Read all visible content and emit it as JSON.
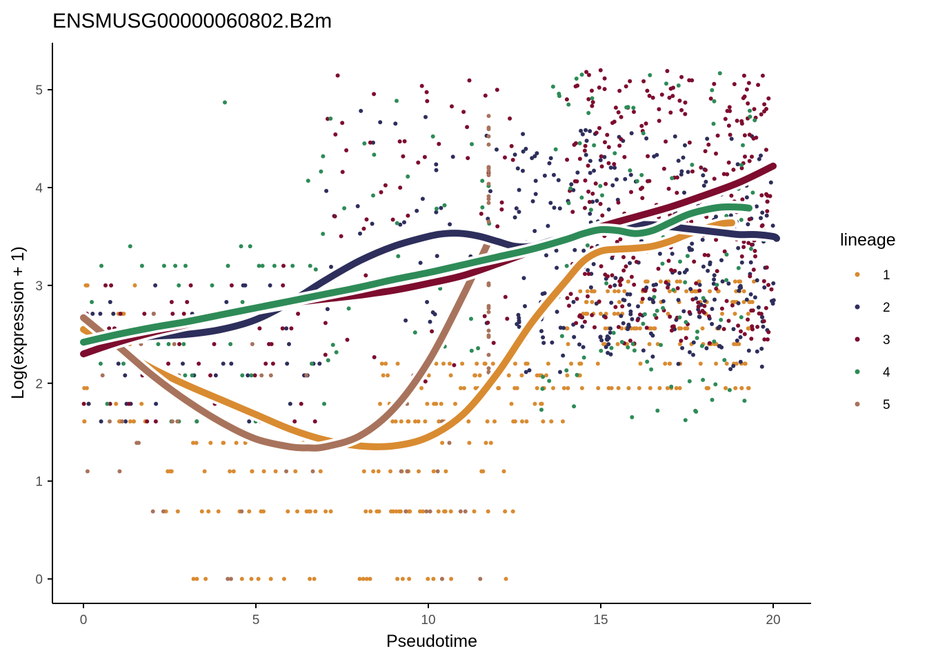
{
  "chart_data": {
    "type": "scatter",
    "title": "ENSMUSG00000060802.B2m",
    "xlabel": "Pseudotime",
    "ylabel": "Log(expression + 1)",
    "xlim": [
      -0.9,
      21.1
    ],
    "ylim": [
      -0.25,
      5.48
    ],
    "x_ticks": [
      0,
      5,
      10,
      15,
      20
    ],
    "y_ticks": [
      0,
      1,
      2,
      3,
      4,
      5
    ],
    "grid": false,
    "legend": {
      "title": "lineage",
      "position": "right",
      "entries": [
        "1",
        "2",
        "3",
        "4",
        "5"
      ]
    },
    "series": [
      {
        "name": "1",
        "color": "#D98B31",
        "point_clusters": [
          {
            "x": [
              2.3,
              12.5
            ],
            "levels": [
              0.0,
              0.69,
              1.1,
              1.39
            ],
            "n": 120
          },
          {
            "x": [
              8.5,
              14.5
            ],
            "levels": [
              1.61,
              1.79,
              1.95,
              2.08,
              2.2
            ],
            "n": 90
          },
          {
            "x": [
              14.0,
              19.5
            ],
            "levels": [
              1.95,
              2.2,
              2.4,
              2.56,
              2.71,
              2.83,
              2.94,
              3.04
            ],
            "n": 160
          },
          {
            "x": [
              0.0,
              2.0
            ],
            "levels": [
              1.61,
              1.79,
              1.95,
              2.08,
              2.4,
              2.71,
              3.0
            ],
            "n": 25
          }
        ],
        "smooth": {
          "x": [
            0.0,
            1.0,
            2.0,
            3.0,
            4.0,
            5.0,
            6.0,
            7.0,
            8.0,
            9.0,
            10.0,
            11.0,
            12.0,
            13.0,
            14.0,
            14.5,
            15.0,
            15.5,
            16.0,
            16.5,
            17.0,
            17.5,
            18.0,
            18.5,
            18.8
          ],
          "y": [
            2.55,
            2.35,
            2.15,
            1.98,
            1.83,
            1.68,
            1.53,
            1.42,
            1.36,
            1.36,
            1.45,
            1.68,
            2.1,
            2.62,
            3.05,
            3.25,
            3.35,
            3.37,
            3.38,
            3.4,
            3.45,
            3.52,
            3.58,
            3.63,
            3.64
          ]
        }
      },
      {
        "name": "2",
        "color": "#2E2E5C",
        "point_clusters": [
          {
            "x": [
              0.0,
              7.0
            ],
            "levels": [
              1.61,
              1.79,
              2.08,
              2.2,
              2.4,
              2.56,
              2.71,
              2.83,
              3.0
            ],
            "n": 45
          },
          {
            "x": [
              7.0,
              12.0
            ],
            "levels": [
              2.6,
              3.0,
              3.4,
              3.8,
              4.2,
              4.6
            ],
            "n": 40,
            "jitter": true
          },
          {
            "x": [
              12.5,
              20.1
            ],
            "levels": [
              2.3,
              2.56,
              2.71,
              2.83,
              3.0,
              3.2,
              3.4,
              3.6,
              3.8,
              4.0,
              4.2,
              4.4
            ],
            "n": 320,
            "jitter": true
          }
        ],
        "smooth": {
          "x": [
            0.0,
            1.0,
            2.0,
            3.0,
            4.0,
            5.0,
            6.0,
            7.0,
            8.0,
            9.0,
            10.0,
            10.5,
            11.0,
            11.5,
            12.0,
            12.5,
            13.0,
            13.5,
            14.0,
            14.5,
            15.0,
            15.5,
            16.0,
            16.5,
            17.0,
            17.5,
            18.0,
            18.5,
            19.0,
            19.5,
            20.0,
            20.1
          ],
          "y": [
            2.43,
            2.45,
            2.48,
            2.5,
            2.55,
            2.65,
            2.83,
            3.05,
            3.25,
            3.4,
            3.5,
            3.53,
            3.53,
            3.5,
            3.45,
            3.4,
            3.4,
            3.45,
            3.5,
            3.55,
            3.58,
            3.6,
            3.62,
            3.62,
            3.6,
            3.58,
            3.56,
            3.54,
            3.52,
            3.52,
            3.5,
            3.48
          ]
        }
      },
      {
        "name": "3",
        "color": "#7D0C2E",
        "point_clusters": [
          {
            "x": [
              0.0,
              7.0
            ],
            "levels": [
              1.61,
              1.79,
              2.08,
              2.2,
              2.4,
              2.56,
              2.71,
              2.83,
              3.0,
              3.2
            ],
            "n": 45
          },
          {
            "x": [
              7.0,
              12.5
            ],
            "levels": [
              2.2,
              2.6,
              3.0,
              3.4,
              3.8,
              4.2,
              4.6,
              5.0
            ],
            "n": 60,
            "jitter": true
          },
          {
            "x": [
              14.0,
              20.0
            ],
            "levels": [
              2.6,
              3.0,
              3.4,
              3.8,
              4.2,
              4.6,
              5.0
            ],
            "n": 320,
            "jitter": true
          }
        ],
        "smooth": {
          "x": [
            0.0,
            1.0,
            2.0,
            3.0,
            4.0,
            5.0,
            6.0,
            7.0,
            8.0,
            9.0,
            10.0,
            11.0,
            12.0,
            13.0,
            14.0,
            15.0,
            16.0,
            17.0,
            18.0,
            19.0,
            20.0
          ],
          "y": [
            2.3,
            2.42,
            2.52,
            2.6,
            2.68,
            2.76,
            2.82,
            2.86,
            2.9,
            2.95,
            3.02,
            3.1,
            3.22,
            3.35,
            3.48,
            3.6,
            3.7,
            3.8,
            3.92,
            4.05,
            4.22
          ]
        }
      },
      {
        "name": "4",
        "color": "#2E8B57",
        "point_clusters": [
          {
            "x": [
              0.0,
              7.0
            ],
            "levels": [
              1.61,
              1.79,
              2.08,
              2.2,
              2.4,
              2.56,
              2.83,
              3.0,
              3.2,
              3.4
            ],
            "n": 40
          },
          {
            "x": [
              6.5,
              12.0
            ],
            "levels": [
              2.4,
              2.8,
              3.2,
              3.6,
              4.0,
              4.4,
              4.7
            ],
            "n": 40,
            "jitter": true
          },
          {
            "x": [
              13.0,
              19.5
            ],
            "levels": [
              1.8,
              2.2,
              2.6,
              3.0,
              3.4,
              3.8,
              4.2,
              4.6,
              5.0
            ],
            "n": 120,
            "jitter": true
          },
          {
            "x": [
              4.1,
              4.1
            ],
            "levels": [
              4.87
            ],
            "n": 1
          }
        ],
        "smooth": {
          "x": [
            0.0,
            1.0,
            2.0,
            3.0,
            4.0,
            5.0,
            6.0,
            7.0,
            8.0,
            9.0,
            10.0,
            11.0,
            12.0,
            13.0,
            14.0,
            14.5,
            15.0,
            15.5,
            16.0,
            16.5,
            17.0,
            17.5,
            18.0,
            18.5,
            19.0,
            19.3
          ],
          "y": [
            2.42,
            2.5,
            2.57,
            2.63,
            2.7,
            2.77,
            2.84,
            2.91,
            2.98,
            3.06,
            3.13,
            3.21,
            3.29,
            3.37,
            3.47,
            3.53,
            3.57,
            3.56,
            3.53,
            3.56,
            3.64,
            3.72,
            3.77,
            3.8,
            3.8,
            3.79
          ]
        }
      },
      {
        "name": "5",
        "color": "#A8735C",
        "point_clusters": [
          {
            "x": [
              0.0,
              7.0
            ],
            "levels": [
              0.0,
              0.69,
              1.1,
              1.39,
              1.61,
              2.08,
              2.4,
              2.71
            ],
            "n": 30
          },
          {
            "x": [
              9.0,
              11.8
            ],
            "levels": [
              0.0,
              0.69,
              1.1,
              1.39,
              1.61,
              1.79,
              2.08
            ],
            "n": 15
          },
          {
            "x": [
              11.75,
              11.75
            ],
            "levels": [
              2.3,
              2.6,
              2.9,
              3.2,
              3.5,
              3.8,
              4.0,
              4.2,
              4.4,
              4.6
            ],
            "n": 30,
            "jitter": true
          }
        ],
        "smooth": {
          "x": [
            0.0,
            1.0,
            2.0,
            3.0,
            4.0,
            5.0,
            6.0,
            6.5,
            7.0,
            8.0,
            9.0,
            10.0,
            11.0,
            11.75
          ],
          "y": [
            2.67,
            2.38,
            2.08,
            1.82,
            1.6,
            1.43,
            1.35,
            1.34,
            1.35,
            1.46,
            1.74,
            2.22,
            2.89,
            3.45
          ]
        }
      }
    ]
  }
}
